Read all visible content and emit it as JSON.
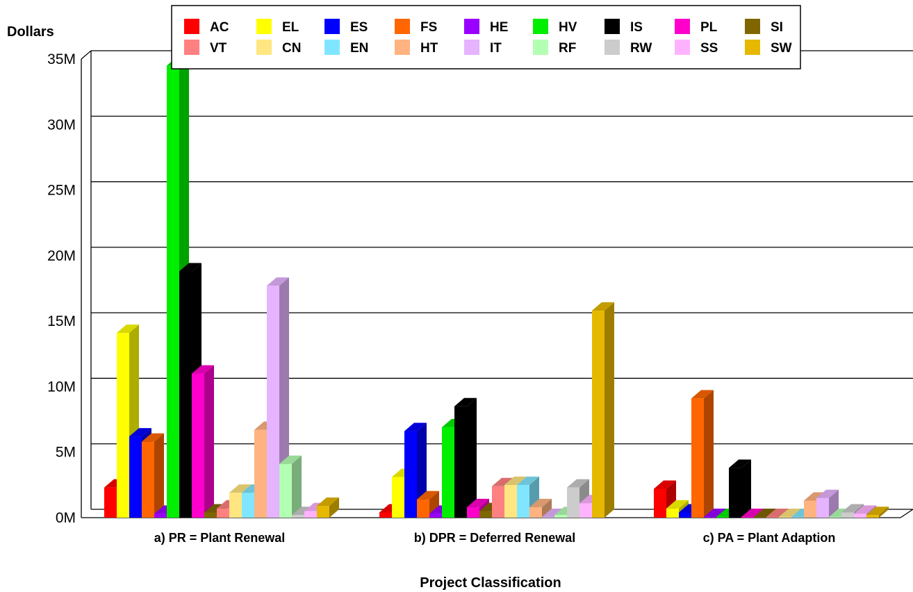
{
  "chart_data": {
    "type": "bar",
    "ylabel": "Dollars",
    "xlabel": "Project Classification",
    "ylim": [
      0,
      35000000
    ],
    "yticks": [
      "0M",
      "5M",
      "10M",
      "15M",
      "20M",
      "25M",
      "30M",
      "35M"
    ],
    "grid": true,
    "legend_position": "top",
    "categories": [
      "a) PR = Plant Renewal",
      "b) DPR = Deferred Renewal",
      "c) PA = Plant Adaption"
    ],
    "series": [
      {
        "name": "AC",
        "color": "#ff0000",
        "values": [
          2300000,
          400000,
          2200000
        ]
      },
      {
        "name": "EL",
        "color": "#ffff00",
        "values": [
          14100000,
          3100000,
          700000
        ]
      },
      {
        "name": "ES",
        "color": "#0000ff",
        "values": [
          6200000,
          6600000,
          400000
        ]
      },
      {
        "name": "FS",
        "color": "#ff6600",
        "values": [
          5800000,
          1400000,
          9100000
        ]
      },
      {
        "name": "HE",
        "color": "#9900ff",
        "values": [
          300000,
          300000,
          50000
        ]
      },
      {
        "name": "HV",
        "color": "#00ee00",
        "values": [
          34500000,
          6900000,
          50000
        ]
      },
      {
        "name": "IS",
        "color": "#000000",
        "values": [
          18800000,
          8500000,
          3800000
        ]
      },
      {
        "name": "PL",
        "color": "#ff00cc",
        "values": [
          11000000,
          800000,
          50000
        ]
      },
      {
        "name": "SI",
        "color": "#806600",
        "values": [
          400000,
          500000,
          50000
        ]
      },
      {
        "name": "VT",
        "color": "#ff8080",
        "values": [
          700000,
          2400000,
          50000
        ]
      },
      {
        "name": "CN",
        "color": "#ffe680",
        "values": [
          1900000,
          2500000,
          50000
        ]
      },
      {
        "name": "EN",
        "color": "#80e6ff",
        "values": [
          1900000,
          2500000,
          50000
        ]
      },
      {
        "name": "HT",
        "color": "#ffb380",
        "values": [
          6700000,
          800000,
          1300000
        ]
      },
      {
        "name": "IT",
        "color": "#e6b3ff",
        "values": [
          17700000,
          50000,
          1500000
        ]
      },
      {
        "name": "RF",
        "color": "#b3ffb3",
        "values": [
          4100000,
          200000,
          50000
        ]
      },
      {
        "name": "RW",
        "color": "#cccccc",
        "values": [
          200000,
          2300000,
          400000
        ]
      },
      {
        "name": "SS",
        "color": "#ffb3ff",
        "values": [
          500000,
          1100000,
          300000
        ]
      },
      {
        "name": "SW",
        "color": "#e6b800",
        "values": [
          900000,
          15800000,
          200000
        ]
      }
    ]
  }
}
